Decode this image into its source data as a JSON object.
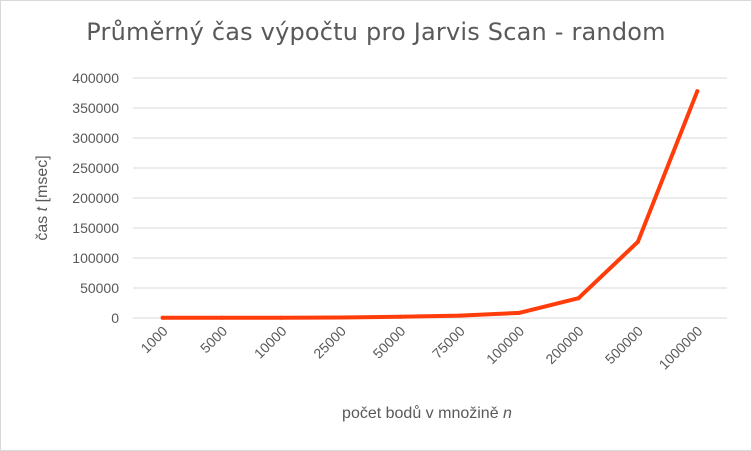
{
  "chart_data": {
    "type": "line",
    "title": "Průměrný čas výpočtu pro Jarvis Scan - random",
    "xlabel_prefix": "počet bodů v množině ",
    "xlabel_var": "n",
    "ylabel_prefix": "čas ",
    "ylabel_var": "t",
    "ylabel_suffix": " [msec]",
    "categories": [
      "1000",
      "5000",
      "10000",
      "25000",
      "50000",
      "75000",
      "100000",
      "200000",
      "500000",
      "1000000"
    ],
    "series": [
      {
        "color": "#ff3c0a",
        "values": [
          300,
          400,
          500,
          900,
          2000,
          4000,
          8500,
          33000,
          127000,
          378000
        ]
      }
    ],
    "yticks": [
      "0",
      "50000",
      "100000",
      "150000",
      "200000",
      "250000",
      "300000",
      "350000",
      "400000"
    ],
    "ylim": [
      0,
      400000
    ],
    "grid": true,
    "legend": "none",
    "colors": {
      "grid": "#d9d9d9",
      "text": "#595959",
      "line": "#ff3c0a"
    }
  }
}
